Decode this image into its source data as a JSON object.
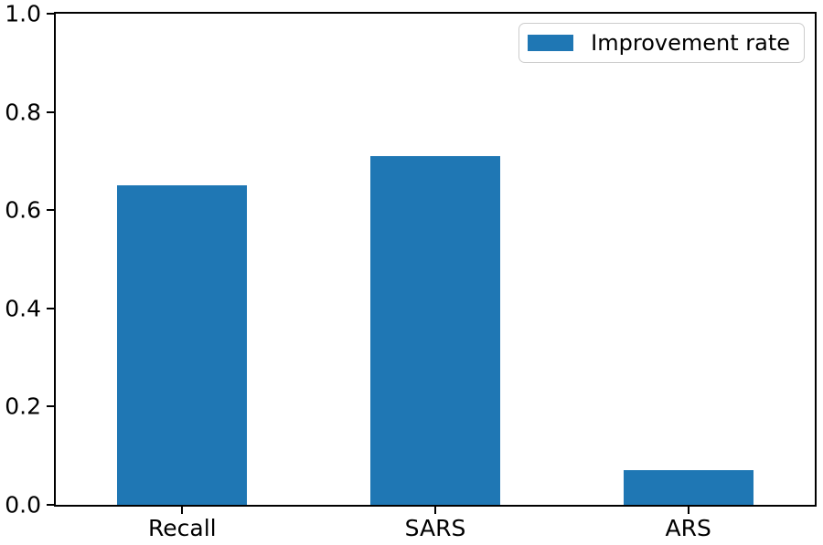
{
  "chart_data": {
    "type": "bar",
    "title": "",
    "xlabel": "",
    "ylabel": "",
    "categories": [
      "Recall",
      "SARS",
      "ARS"
    ],
    "values": [
      0.65,
      0.71,
      0.07
    ],
    "series_name": "Improvement rate",
    "ylim": [
      0.0,
      1.0
    ],
    "yticks": [
      0.0,
      0.2,
      0.4,
      0.6,
      0.8,
      1.0
    ],
    "ytick_labels": [
      "0.0",
      "0.2",
      "0.4",
      "0.6",
      "0.8",
      "1.0"
    ],
    "bar_color": "#1f77b4",
    "axis_color": "#000000",
    "grid": false,
    "legend": {
      "label": "Improvement rate",
      "position": "upper right",
      "border_color": "#cccccc",
      "background": "#ffffff"
    }
  }
}
